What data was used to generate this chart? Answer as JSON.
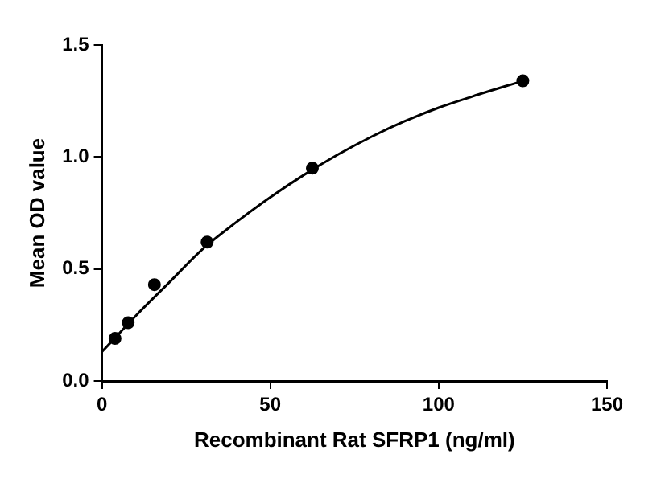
{
  "chart_data": {
    "type": "scatter",
    "xlabel": "Recombinant Rat SFRP1 (ng/ml)",
    "ylabel": "Mean OD value",
    "xlim": [
      0,
      150
    ],
    "xticks": [
      0,
      50,
      100,
      150
    ],
    "ylim": [
      0,
      1.5
    ],
    "yticks": [
      {
        "value": 0,
        "label": "0.0"
      },
      {
        "value": 0.5,
        "label": "0.5"
      },
      {
        "value": 1,
        "label": "1.0"
      },
      {
        "value": 1.5,
        "label": "1.5"
      }
    ],
    "grid": false,
    "legend": false,
    "marker": "circle",
    "series": [
      {
        "type": "scatter",
        "color": "#000000",
        "x": [
          3.9,
          7.8,
          15.6,
          31.25,
          62.5,
          125
        ],
        "values": [
          0.19,
          0.26,
          0.43,
          0.62,
          0.95,
          1.34
        ]
      },
      {
        "type": "line",
        "color": "#000000",
        "marker": "none",
        "line_style": "solid",
        "x": [
          0,
          5,
          10,
          20,
          30,
          40,
          50,
          60,
          70,
          80,
          90,
          100,
          110,
          125
        ],
        "values": [
          0.13,
          0.21,
          0.29,
          0.44,
          0.59,
          0.71,
          0.82,
          0.92,
          1.01,
          1.09,
          1.16,
          1.22,
          1.27,
          1.34
        ]
      }
    ]
  }
}
